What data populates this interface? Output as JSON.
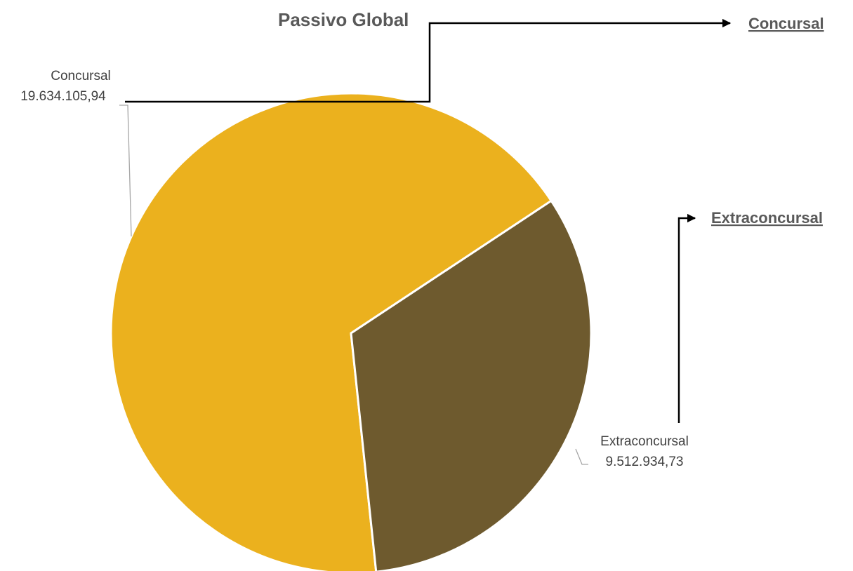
{
  "chart_data": {
    "type": "pie",
    "title": "Passivo Global",
    "slices": [
      {
        "label": "Concursal",
        "value": 19634105.94,
        "value_text": "19.634.105,94",
        "color": "#ebb11e"
      },
      {
        "label": "Extraconcursal",
        "value": 9512934.73,
        "value_text": "9.512.934,73",
        "color": "#6e5a2e"
      }
    ],
    "legend": "none",
    "data_labels": "outside-with-leaders"
  },
  "links": {
    "concursal": "Concursal",
    "extraconcursal": "Extraconcursal"
  }
}
